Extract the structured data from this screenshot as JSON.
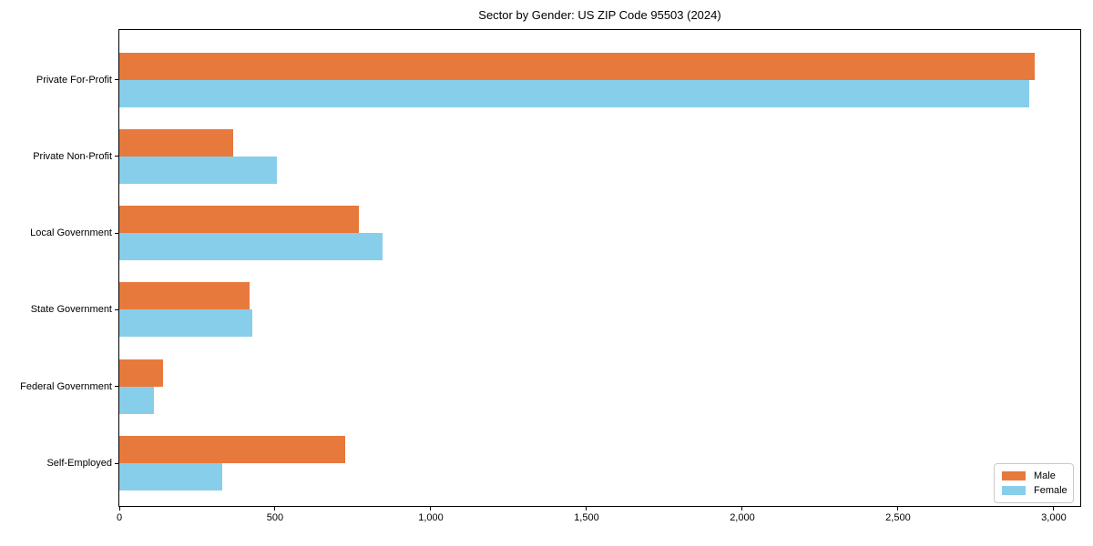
{
  "chart_data": {
    "type": "bar",
    "orientation": "horizontal",
    "title": "Sector by Gender: US ZIP Code 95503 (2024)",
    "categories": [
      "Private For-Profit",
      "Private Non-Profit",
      "Local Government",
      "State Government",
      "Federal Government",
      "Self-Employed"
    ],
    "series": [
      {
        "name": "Male",
        "color": "#E8793D",
        "values": [
          2940,
          365,
          770,
          418,
          140,
          725
        ]
      },
      {
        "name": "Female",
        "color": "#87CEEB",
        "values": [
          2920,
          505,
          845,
          427,
          110,
          330
        ]
      }
    ],
    "xlabel": "",
    "ylabel": "",
    "xlim": [
      0,
      3085
    ],
    "xticks": [
      0,
      500,
      1000,
      1500,
      2000,
      2500,
      3000
    ],
    "xtick_labels": [
      "0",
      "500",
      "1,000",
      "1,500",
      "2,000",
      "2,500",
      "3,000"
    ],
    "legend_position": "lower-right",
    "grid": false,
    "background_color": "#ffffff",
    "axis_color": "#000000"
  }
}
